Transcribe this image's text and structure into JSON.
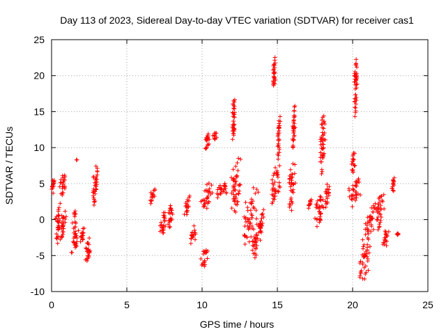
{
  "chart_data": {
    "type": "scatter",
    "title": "Day 113 of 2023, Sidereal Day-to-day VTEC variation (SDTVAR) for receiver cas1",
    "xlabel": "GPS time / hours",
    "ylabel": "SDTVAR / TECUs",
    "xlim": [
      0,
      25
    ],
    "ylim": [
      -10,
      25
    ],
    "xticks": [
      0,
      5,
      10,
      15,
      20,
      25
    ],
    "yticks": [
      -10,
      -5,
      0,
      5,
      10,
      15,
      20,
      25
    ],
    "xtick_labels": [
      "0",
      "5",
      "10",
      "15",
      "20",
      "25"
    ],
    "ytick_labels": [
      "-10",
      "-5",
      "0",
      "5",
      "10",
      "15",
      "20",
      "25"
    ],
    "grid": true,
    "marker": "plus",
    "series_color": "#ff0000",
    "series": [
      {
        "name": "cas1",
        "clusters": [
          {
            "x": [
              0.0,
              0.2
            ],
            "y": [
              3.5,
              6.0
            ]
          },
          {
            "x": [
              0.25,
              0.6
            ],
            "y": [
              -3.5,
              2.5
            ]
          },
          {
            "x": [
              0.5,
              0.95
            ],
            "y": [
              3.0,
              7.0
            ]
          },
          {
            "x": [
              0.5,
              1.0
            ],
            "y": [
              -3.0,
              1.5
            ]
          },
          {
            "x": [
              1.3,
              1.8
            ],
            "y": [
              -5.0,
              2.0
            ]
          },
          {
            "x": [
              1.65,
              1.7
            ],
            "y": [
              8.3,
              8.3
            ]
          },
          {
            "x": [
              1.9,
              2.2
            ],
            "y": [
              -3.5,
              -1.0
            ]
          },
          {
            "x": [
              2.2,
              2.6
            ],
            "y": [
              -6.5,
              -2.0
            ]
          },
          {
            "x": [
              2.7,
              3.1
            ],
            "y": [
              1.5,
              8.5
            ]
          },
          {
            "x": [
              6.5,
              6.9
            ],
            "y": [
              2.0,
              4.5
            ]
          },
          {
            "x": [
              7.2,
              7.6
            ],
            "y": [
              -2.5,
              1.5
            ]
          },
          {
            "x": [
              7.7,
              8.1
            ],
            "y": [
              -1.5,
              2.5
            ]
          },
          {
            "x": [
              8.8,
              9.2
            ],
            "y": [
              0.5,
              3.5
            ]
          },
          {
            "x": [
              9.2,
              9.6
            ],
            "y": [
              -3.8,
              -0.8
            ]
          },
          {
            "x": [
              9.9,
              10.4
            ],
            "y": [
              -6.8,
              -4.0
            ]
          },
          {
            "x": [
              9.9,
              10.7
            ],
            "y": [
              1.0,
              5.5
            ]
          },
          {
            "x": [
              10.2,
              10.5
            ],
            "y": [
              9.0,
              12.5
            ]
          },
          {
            "x": [
              10.7,
              11.0
            ],
            "y": [
              10.5,
              12.5
            ]
          },
          {
            "x": [
              10.9,
              11.8
            ],
            "y": [
              2.5,
              5.5
            ]
          },
          {
            "x": [
              11.8,
              12.6
            ],
            "y": [
              0.5,
              9.0
            ]
          },
          {
            "x": [
              12.0,
              12.2
            ],
            "y": [
              10.0,
              18.0
            ]
          },
          {
            "x": [
              12.6,
              13.8
            ],
            "y": [
              -3.5,
              4.5
            ]
          },
          {
            "x": [
              13.3,
              13.8
            ],
            "y": [
              -5.5,
              -1.5
            ]
          },
          {
            "x": [
              13.7,
              14.1
            ],
            "y": [
              -3.0,
              1.5
            ]
          },
          {
            "x": [
              14.5,
              15.2
            ],
            "y": [
              2.0,
              8.0
            ]
          },
          {
            "x": [
              14.7,
              14.9
            ],
            "y": [
              17.5,
              23.0
            ]
          },
          {
            "x": [
              15.0,
              15.2
            ],
            "y": [
              8.0,
              14.5
            ]
          },
          {
            "x": [
              15.7,
              16.2
            ],
            "y": [
              1.0,
              8.0
            ]
          },
          {
            "x": [
              16.0,
              16.2
            ],
            "y": [
              9.0,
              17.0
            ]
          },
          {
            "x": [
              17.0,
              17.3
            ],
            "y": [
              1.5,
              3.0
            ]
          },
          {
            "x": [
              17.5,
              18.1
            ],
            "y": [
              -1.5,
              4.5
            ]
          },
          {
            "x": [
              17.8,
              18.2
            ],
            "y": [
              6.0,
              15.5
            ]
          },
          {
            "x": [
              18.1,
              18.5
            ],
            "y": [
              1.5,
              5.5
            ]
          },
          {
            "x": [
              19.7,
              20.6
            ],
            "y": [
              1.5,
              6.0
            ]
          },
          {
            "x": [
              19.9,
              20.2
            ],
            "y": [
              6.0,
              9.5
            ]
          },
          {
            "x": [
              20.1,
              20.3
            ],
            "y": [
              14.0,
              24.0
            ]
          },
          {
            "x": [
              20.3,
              21.3
            ],
            "y": [
              -8.5,
              -2.0
            ]
          },
          {
            "x": [
              20.8,
              21.5
            ],
            "y": [
              -3.0,
              2.0
            ]
          },
          {
            "x": [
              21.3,
              22.2
            ],
            "y": [
              -1.5,
              4.0
            ]
          },
          {
            "x": [
              22.0,
              22.4
            ],
            "y": [
              -4.0,
              -1.0
            ]
          },
          {
            "x": [
              22.6,
              22.8
            ],
            "y": [
              3.5,
              6.0
            ]
          },
          {
            "x": [
              22.9,
              23.1
            ],
            "y": [
              -2.2,
              -1.8
            ]
          }
        ]
      }
    ]
  }
}
